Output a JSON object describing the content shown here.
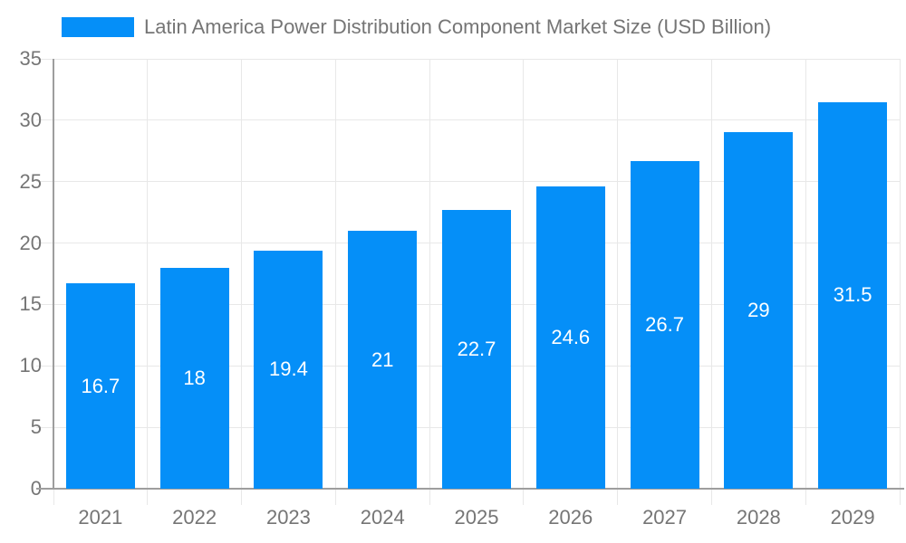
{
  "colors": {
    "bar": "#058FF8",
    "axis_text": "#757575",
    "gridline": "#e8e8e8",
    "axis_line": "#9e9e9e",
    "value_text": "#ffffff",
    "background": "#ffffff"
  },
  "legend": {
    "label": "Latin America Power Distribution Component Market Size (USD Billion)",
    "swatch_color": "#058FF8",
    "position": "top"
  },
  "chart_data": {
    "type": "bar",
    "title": "Latin America Power Distribution Component Market Size (USD Billion)",
    "categories": [
      "2021",
      "2022",
      "2023",
      "2024",
      "2025",
      "2026",
      "2027",
      "2028",
      "2029"
    ],
    "values": [
      16.7,
      18,
      19.4,
      21,
      22.7,
      24.6,
      26.7,
      29,
      31.5
    ],
    "value_labels": [
      "16.7",
      "18",
      "19.4",
      "21",
      "22.7",
      "24.6",
      "26.7",
      "29",
      "31.5"
    ],
    "series": [
      {
        "name": "Latin America Power Distribution Component Market Size (USD Billion)",
        "values": [
          16.7,
          18,
          19.4,
          21,
          22.7,
          24.6,
          26.7,
          29,
          31.5
        ]
      }
    ],
    "xlabel": "",
    "ylabel": "",
    "ylim": [
      0,
      35
    ],
    "yticks": [
      0,
      5,
      10,
      15,
      20,
      25,
      30,
      35
    ],
    "grid": true,
    "legend_position": "top",
    "value_label_position": "inside-center"
  }
}
